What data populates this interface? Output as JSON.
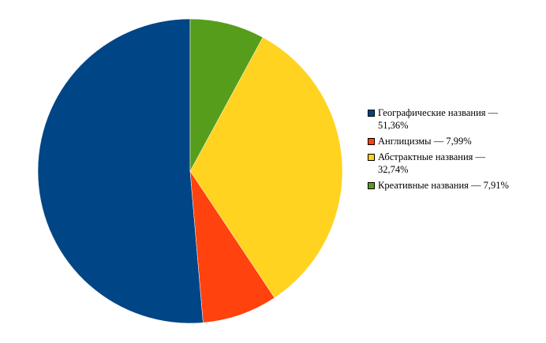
{
  "chart_data": {
    "type": "pie",
    "categories": [
      "Географические названия — 51,36%",
      "Англицизмы — 7,99%",
      "Абстрактные названия — 32,74%",
      "Креативные названия — 7,91%"
    ],
    "values": [
      51.36,
      7.99,
      32.74,
      7.91
    ],
    "colors": [
      "#004586",
      "#ff420e",
      "#ffd320",
      "#579d1c"
    ],
    "legend": "right"
  }
}
